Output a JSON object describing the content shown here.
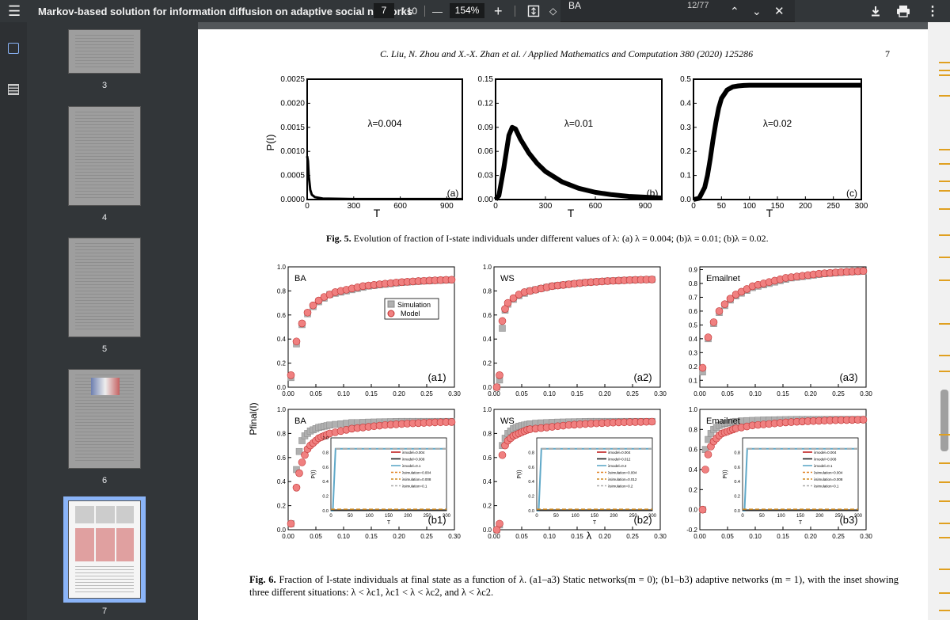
{
  "toolbar": {
    "title": "Markov-based solution for information diffusion on adaptive social networks",
    "page_current": "7",
    "page_total": "/ 10",
    "zoom": "154%",
    "zoom_out": "—",
    "zoom_in": "+"
  },
  "find": {
    "query": "BA",
    "count": "12/77"
  },
  "sidebar": {
    "thumbs": [
      {
        "label": "3"
      },
      {
        "label": "4"
      },
      {
        "label": "5"
      },
      {
        "label": "6"
      },
      {
        "label": "7"
      }
    ]
  },
  "paper": {
    "header": "C. Liu, N. Zhou and X.-X. Zhan et al. / Applied Mathematics and Computation 380 (2020) 125286",
    "page_number": "7",
    "fig5_caption_bold": "Fig. 5.",
    "fig5_caption": "Evolution of fraction of I-state individuals under different values of λ: (a) λ = 0.004; (b)λ = 0.01; (b)λ = 0.02.",
    "fig6_caption_bold": "Fig. 6.",
    "fig6_caption": "Fraction of I-state individuals at final state as a function of λ. (a1–a3) Static networks(m = 0); (b1–b3) adaptive networks (m = 1), with the inset showing three different situations: λ < λc1, λc1 < λ < λc2, and λ < λc2."
  },
  "colors": {
    "model": "#f08080",
    "simulation": "#b0b0b0",
    "accent": "#8ab4f8"
  },
  "chart_data": [
    {
      "type": "line",
      "panel": "(a)",
      "annotation": "λ=0.004",
      "xlabel": "T",
      "ylabel": "P(I)",
      "xlim": [
        0,
        1000
      ],
      "ylim": [
        0,
        0.0025
      ],
      "xticks": [
        "0",
        "300",
        "600",
        "900"
      ],
      "yticks": [
        "0.0000",
        "0.0005",
        "0.0010",
        "0.0015",
        "0.0020",
        "0.0025"
      ],
      "x": [
        0,
        5,
        10,
        20,
        30,
        50,
        100,
        300,
        600,
        1000
      ],
      "y": [
        0.0009,
        0.0008,
        0.0005,
        0.0002,
        0.0001,
        5e-05,
        2e-05,
        1e-05,
        1e-05,
        1e-05
      ]
    },
    {
      "type": "line",
      "panel": "(b)",
      "annotation": "λ=0.01",
      "xlabel": "T",
      "xlim": [
        0,
        1000
      ],
      "ylim": [
        0,
        0.15
      ],
      "xticks": [
        "0",
        "300",
        "600",
        "900"
      ],
      "yticks": [
        "0.00",
        "0.03",
        "0.06",
        "0.09",
        "0.12",
        "0.15"
      ],
      "x": [
        0,
        20,
        50,
        80,
        100,
        120,
        150,
        200,
        250,
        300,
        400,
        500,
        600,
        700,
        800,
        900,
        1000
      ],
      "y": [
        0,
        0.005,
        0.04,
        0.08,
        0.09,
        0.088,
        0.075,
        0.058,
        0.045,
        0.035,
        0.022,
        0.014,
        0.009,
        0.006,
        0.004,
        0.003,
        0.002
      ]
    },
    {
      "type": "line",
      "panel": "(c)",
      "annotation": "λ=0.02",
      "xlabel": "T",
      "xlim": [
        0,
        300
      ],
      "ylim": [
        0,
        0.5
      ],
      "xticks": [
        "0",
        "50",
        "100",
        "150",
        "200",
        "250",
        "300"
      ],
      "yticks": [
        "0.0",
        "0.1",
        "0.2",
        "0.3",
        "0.4",
        "0.5"
      ],
      "x": [
        0,
        10,
        20,
        25,
        30,
        35,
        40,
        45,
        50,
        60,
        70,
        80,
        90,
        100,
        150,
        200,
        250,
        300
      ],
      "y": [
        0,
        0.005,
        0.05,
        0.1,
        0.17,
        0.25,
        0.32,
        0.38,
        0.42,
        0.455,
        0.468,
        0.472,
        0.474,
        0.475,
        0.475,
        0.475,
        0.475,
        0.475
      ]
    },
    {
      "type": "scatter",
      "panel": "(a1)",
      "network": "BA",
      "ylabel": "P_final(I)",
      "xlim": [
        0,
        0.3
      ],
      "ylim": [
        0,
        1.0
      ],
      "legend": [
        "Simulation",
        "Model"
      ],
      "yticks": [
        "0.0",
        "0.2",
        "0.4",
        "0.6",
        "0.8",
        "1.0"
      ],
      "xticks": [
        "0.00",
        "0.05",
        "0.10",
        "0.15",
        "0.20",
        "0.25",
        "0.30"
      ],
      "x": [
        0.005,
        0.015,
        0.025,
        0.035,
        0.045,
        0.055,
        0.065,
        0.075,
        0.085,
        0.095,
        0.105,
        0.115,
        0.125,
        0.135,
        0.145,
        0.155,
        0.165,
        0.175,
        0.185,
        0.195,
        0.205,
        0.215,
        0.225,
        0.235,
        0.245,
        0.255,
        0.265,
        0.275,
        0.285,
        0.295
      ],
      "model": [
        0.1,
        0.38,
        0.53,
        0.62,
        0.68,
        0.72,
        0.75,
        0.77,
        0.79,
        0.8,
        0.81,
        0.82,
        0.83,
        0.84,
        0.845,
        0.85,
        0.855,
        0.86,
        0.865,
        0.87,
        0.873,
        0.876,
        0.879,
        0.882,
        0.884,
        0.886,
        0.888,
        0.89,
        0.892,
        0.893
      ],
      "simulation": [
        0.08,
        0.36,
        0.52,
        0.61,
        0.67,
        0.71,
        0.74,
        0.77,
        0.78,
        0.79,
        0.8,
        0.81,
        0.82,
        0.83,
        0.84,
        0.845,
        0.85,
        0.855,
        0.86,
        0.865,
        0.87,
        0.873,
        0.876,
        0.879,
        0.882,
        0.884,
        0.886,
        0.888,
        0.89,
        0.891
      ]
    },
    {
      "type": "scatter",
      "panel": "(a2)",
      "network": "WS",
      "xlim": [
        0,
        0.3
      ],
      "ylim": [
        0,
        1.0
      ],
      "yticks": [
        "0.0",
        "0.2",
        "0.4",
        "0.6",
        "0.8",
        "1.0"
      ],
      "xticks": [
        "0.00",
        "0.05",
        "0.10",
        "0.15",
        "0.20",
        "0.25",
        "0.30"
      ],
      "x": [
        0.005,
        0.01,
        0.015,
        0.02,
        0.025,
        0.035,
        0.045,
        0.055,
        0.065,
        0.075,
        0.085,
        0.095,
        0.105,
        0.115,
        0.125,
        0.135,
        0.145,
        0.155,
        0.165,
        0.175,
        0.185,
        0.195,
        0.205,
        0.215,
        0.225,
        0.235,
        0.245,
        0.255,
        0.265,
        0.275,
        0.285
      ],
      "model": [
        0.0,
        0.1,
        0.55,
        0.65,
        0.7,
        0.74,
        0.77,
        0.79,
        0.8,
        0.81,
        0.82,
        0.83,
        0.84,
        0.845,
        0.85,
        0.855,
        0.86,
        0.865,
        0.87,
        0.873,
        0.876,
        0.879,
        0.882,
        0.884,
        0.886,
        0.888,
        0.89,
        0.892,
        0.893,
        0.894,
        0.895
      ],
      "simulation": [
        0.0,
        0.06,
        0.49,
        0.64,
        0.69,
        0.73,
        0.76,
        0.78,
        0.8,
        0.81,
        0.82,
        0.83,
        0.84,
        0.845,
        0.85,
        0.855,
        0.86,
        0.865,
        0.87,
        0.873,
        0.876,
        0.879,
        0.882,
        0.884,
        0.886,
        0.888,
        0.89,
        0.892,
        0.893,
        0.894,
        0.895
      ]
    },
    {
      "type": "scatter",
      "panel": "(a3)",
      "network": "Emailnet",
      "xlim": [
        0,
        0.3
      ],
      "ylim": [
        0.05,
        0.92
      ],
      "yticks": [
        "0.1",
        "0.2",
        "0.3",
        "0.4",
        "0.5",
        "0.6",
        "0.7",
        "0.8",
        "0.9"
      ],
      "xticks": [
        "0.00",
        "0.05",
        "0.10",
        "0.15",
        "0.20",
        "0.25",
        "0.30"
      ],
      "x": [
        0.005,
        0.015,
        0.025,
        0.035,
        0.045,
        0.055,
        0.065,
        0.075,
        0.085,
        0.095,
        0.105,
        0.115,
        0.125,
        0.135,
        0.145,
        0.155,
        0.165,
        0.175,
        0.185,
        0.195,
        0.205,
        0.215,
        0.225,
        0.235,
        0.245,
        0.255,
        0.265,
        0.275,
        0.285,
        0.295
      ],
      "model": [
        0.19,
        0.41,
        0.52,
        0.6,
        0.65,
        0.69,
        0.72,
        0.74,
        0.76,
        0.78,
        0.79,
        0.8,
        0.81,
        0.82,
        0.83,
        0.84,
        0.845,
        0.85,
        0.855,
        0.86,
        0.865,
        0.87,
        0.873,
        0.876,
        0.879,
        0.882,
        0.884,
        0.886,
        0.888,
        0.89
      ],
      "simulation": [
        0.16,
        0.4,
        0.51,
        0.59,
        0.64,
        0.68,
        0.71,
        0.73,
        0.75,
        0.77,
        0.78,
        0.79,
        0.8,
        0.81,
        0.82,
        0.83,
        0.84,
        0.845,
        0.85,
        0.855,
        0.86,
        0.865,
        0.87,
        0.873,
        0.876,
        0.879,
        0.882,
        0.884,
        0.886,
        0.888
      ]
    },
    {
      "type": "scatter",
      "panel": "(b1)",
      "network": "BA",
      "xlim": [
        0,
        0.3
      ],
      "ylim": [
        0,
        1.0
      ],
      "yticks": [
        "0.0",
        "0.2",
        "0.4",
        "0.6",
        "0.8",
        "1.0"
      ],
      "xticks": [
        "0.00",
        "0.05",
        "0.10",
        "0.15",
        "0.20",
        "0.25",
        "0.30"
      ],
      "x": [
        0.005,
        0.015,
        0.02,
        0.025,
        0.03,
        0.035,
        0.04,
        0.045,
        0.05,
        0.055,
        0.06,
        0.065,
        0.07,
        0.075,
        0.085,
        0.095,
        0.105,
        0.115,
        0.125,
        0.135,
        0.145,
        0.155,
        0.165,
        0.175,
        0.185,
        0.195,
        0.205,
        0.215,
        0.225,
        0.235,
        0.245,
        0.255,
        0.265,
        0.275,
        0.285,
        0.295
      ],
      "model": [
        0.05,
        0.35,
        0.47,
        0.56,
        0.62,
        0.67,
        0.7,
        0.72,
        0.74,
        0.76,
        0.77,
        0.78,
        0.79,
        0.8,
        0.81,
        0.82,
        0.83,
        0.84,
        0.845,
        0.85,
        0.855,
        0.86,
        0.865,
        0.87,
        0.873,
        0.876,
        0.879,
        0.882,
        0.884,
        0.886,
        0.888,
        0.89,
        0.892,
        0.893,
        0.894,
        0.895
      ],
      "simulation": [
        0.05,
        0.5,
        0.65,
        0.74,
        0.78,
        0.8,
        0.82,
        0.83,
        0.84,
        0.85,
        0.855,
        0.86,
        0.865,
        0.87,
        0.875,
        0.88,
        0.885,
        0.89,
        0.89,
        0.892,
        0.894,
        0.895,
        0.896,
        0.897,
        0.898,
        0.899,
        0.9,
        0.9,
        0.9,
        0.9,
        0.9,
        0.9,
        0.9,
        0.9,
        0.9,
        0.9
      ],
      "inset": {
        "xlabel": "T",
        "ylabel": "P(I)",
        "xticks": [
          "0",
          "50",
          "100",
          "150",
          "200",
          "250",
          "300"
        ],
        "yticks": [
          "0.0",
          "0.2",
          "0.4",
          "0.6",
          "0.8",
          "1.0"
        ],
        "legend": [
          "λmodel=0.004",
          "λmodel=0.008",
          "λmodel=0.1",
          "λsimulation=0.004",
          "λsimulation=0.008",
          "λsimulation=0.1"
        ],
        "plateau": 0.85
      }
    },
    {
      "type": "scatter",
      "panel": "(b2)",
      "network": "WS",
      "xlim": [
        0,
        0.3
      ],
      "ylim": [
        0,
        1.0
      ],
      "yticks": [
        "0.0",
        "0.2",
        "0.4",
        "0.6",
        "0.8",
        "1.0"
      ],
      "xticks": [
        "0.00",
        "0.05",
        "0.10",
        "0.15",
        "0.20",
        "0.25",
        "0.30"
      ],
      "x": [
        0.005,
        0.01,
        0.015,
        0.02,
        0.025,
        0.03,
        0.035,
        0.04,
        0.045,
        0.05,
        0.055,
        0.06,
        0.065,
        0.075,
        0.085,
        0.095,
        0.105,
        0.115,
        0.125,
        0.135,
        0.145,
        0.155,
        0.165,
        0.175,
        0.185,
        0.195,
        0.205,
        0.215,
        0.225,
        0.235,
        0.245,
        0.255,
        0.265,
        0.275,
        0.285
      ],
      "model": [
        0.0,
        0.05,
        0.62,
        0.7,
        0.74,
        0.76,
        0.78,
        0.79,
        0.8,
        0.81,
        0.82,
        0.83,
        0.835,
        0.84,
        0.845,
        0.85,
        0.855,
        0.86,
        0.865,
        0.87,
        0.873,
        0.876,
        0.879,
        0.882,
        0.884,
        0.886,
        0.888,
        0.89,
        0.892,
        0.893,
        0.894,
        0.895,
        0.896,
        0.897,
        0.898
      ],
      "simulation": [
        0.0,
        0.04,
        0.7,
        0.76,
        0.8,
        0.82,
        0.84,
        0.85,
        0.86,
        0.865,
        0.87,
        0.875,
        0.88,
        0.885,
        0.888,
        0.89,
        0.892,
        0.894,
        0.895,
        0.896,
        0.897,
        0.898,
        0.899,
        0.9,
        0.9,
        0.9,
        0.9,
        0.9,
        0.9,
        0.9,
        0.9,
        0.9,
        0.9,
        0.9,
        0.9
      ],
      "inset": {
        "xlabel": "T",
        "ylabel": "P(I)",
        "xticks": [
          "0",
          "50",
          "100",
          "150",
          "200",
          "250",
          "300"
        ],
        "yticks": [
          "0.0",
          "0.2",
          "0.4",
          "0.6",
          "0.8"
        ],
        "legend": [
          "λmodel=0.004",
          "λmodel=0.012",
          "λmodel=0.2",
          "λsimulation=0.004",
          "λsimulation=0.012",
          "λsimulation=0.2"
        ],
        "plateau": 0.85
      }
    },
    {
      "type": "scatter",
      "panel": "(b3)",
      "network": "Emailnet",
      "xlim": [
        0,
        0.3
      ],
      "ylim": [
        -0.2,
        1.0
      ],
      "yticks": [
        "-0.2",
        "0.0",
        "0.2",
        "0.4",
        "0.6",
        "0.8",
        "1.0"
      ],
      "xticks": [
        "0.00",
        "0.05",
        "0.10",
        "0.15",
        "0.20",
        "0.25",
        "0.30"
      ],
      "x": [
        0.005,
        0.01,
        0.015,
        0.02,
        0.025,
        0.03,
        0.035,
        0.04,
        0.045,
        0.05,
        0.055,
        0.06,
        0.065,
        0.075,
        0.085,
        0.095,
        0.105,
        0.115,
        0.125,
        0.135,
        0.145,
        0.155,
        0.165,
        0.175,
        0.185,
        0.195,
        0.205,
        0.215,
        0.225,
        0.235,
        0.245,
        0.255,
        0.265,
        0.275,
        0.285,
        0.295
      ],
      "model": [
        0.0,
        0.4,
        0.55,
        0.63,
        0.68,
        0.71,
        0.74,
        0.76,
        0.77,
        0.78,
        0.79,
        0.8,
        0.81,
        0.82,
        0.83,
        0.84,
        0.845,
        0.85,
        0.855,
        0.86,
        0.865,
        0.87,
        0.873,
        0.876,
        0.879,
        0.882,
        0.884,
        0.886,
        0.888,
        0.89,
        0.892,
        0.893,
        0.894,
        0.895,
        0.896,
        0.897
      ],
      "simulation": [
        0.0,
        0.6,
        0.7,
        0.76,
        0.8,
        0.82,
        0.84,
        0.85,
        0.86,
        0.865,
        0.87,
        0.875,
        0.88,
        0.885,
        0.888,
        0.89,
        0.892,
        0.894,
        0.895,
        0.896,
        0.897,
        0.898,
        0.899,
        0.9,
        0.9,
        0.9,
        0.9,
        0.9,
        0.9,
        0.9,
        0.9,
        0.9,
        0.9,
        0.9,
        0.9,
        0.9
      ],
      "inset": {
        "xlabel": "T",
        "ylabel": "P(I)",
        "xticks": [
          "0",
          "50",
          "100",
          "150",
          "200",
          "250",
          "300"
        ],
        "yticks": [
          "0.0",
          "0.2",
          "0.4",
          "0.6",
          "0.8"
        ],
        "legend": [
          "λmodel=0.004",
          "λmodel=0.008",
          "λmodel=0.1",
          "λsimulation=0.004",
          "λsimulation=0.008",
          "λsimulation=0.1"
        ],
        "plateau": 0.85
      }
    }
  ],
  "fig6_xlabel": "λ",
  "fig6_ylabel": "Pfinal(I)"
}
